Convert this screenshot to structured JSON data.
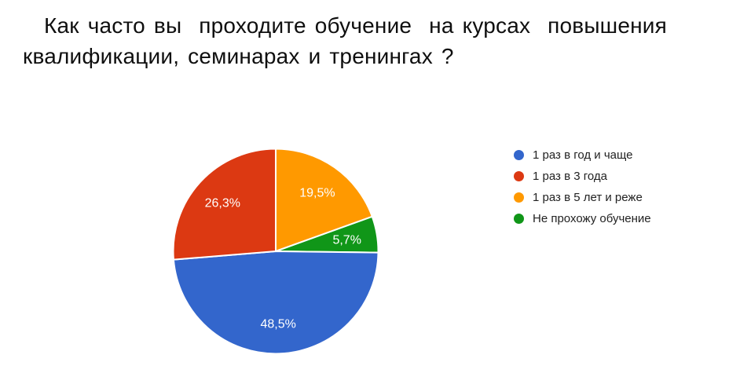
{
  "page": {
    "background": "#ffffff"
  },
  "title": {
    "line1": "Как часто вы  проходите обучение  на курсах  повышения",
    "line2": "квалификации, семинарах и тренингах ?",
    "full_text": "Как часто вы проходите обучение на курсах повышения квалификации, семинарах и тренингах?",
    "color": "#0f0f0f"
  },
  "chart_data": {
    "type": "pie",
    "title": "Как часто вы проходите обучение на курсах повышения квалификации, семинарах и тренингах?",
    "unit": "percent",
    "slices": [
      {
        "label": "1 раз в год и чаще",
        "value": 48.5,
        "display": "48,5%",
        "color": "#3366CC"
      },
      {
        "label": "1 раз в 3 года",
        "value": 26.3,
        "display": "26,3%",
        "color": "#DC3912"
      },
      {
        "label": "1 раз в 5 лет и реже",
        "value": 19.5,
        "display": "19,5%",
        "color": "#FF9900"
      },
      {
        "label": "Не прохожу обучение",
        "value": 5.7,
        "display": "5,7%",
        "color": "#109618"
      }
    ],
    "draw_order": [
      2,
      3,
      0,
      1
    ],
    "start_angle_deg": 0,
    "direction": "clockwise",
    "slice_border_color": "#ffffff",
    "label_color": "#ffffff",
    "labels": "percent inside slices",
    "legend_position": "right",
    "legend_marker": "circle",
    "legend_text_color": "#222222"
  }
}
